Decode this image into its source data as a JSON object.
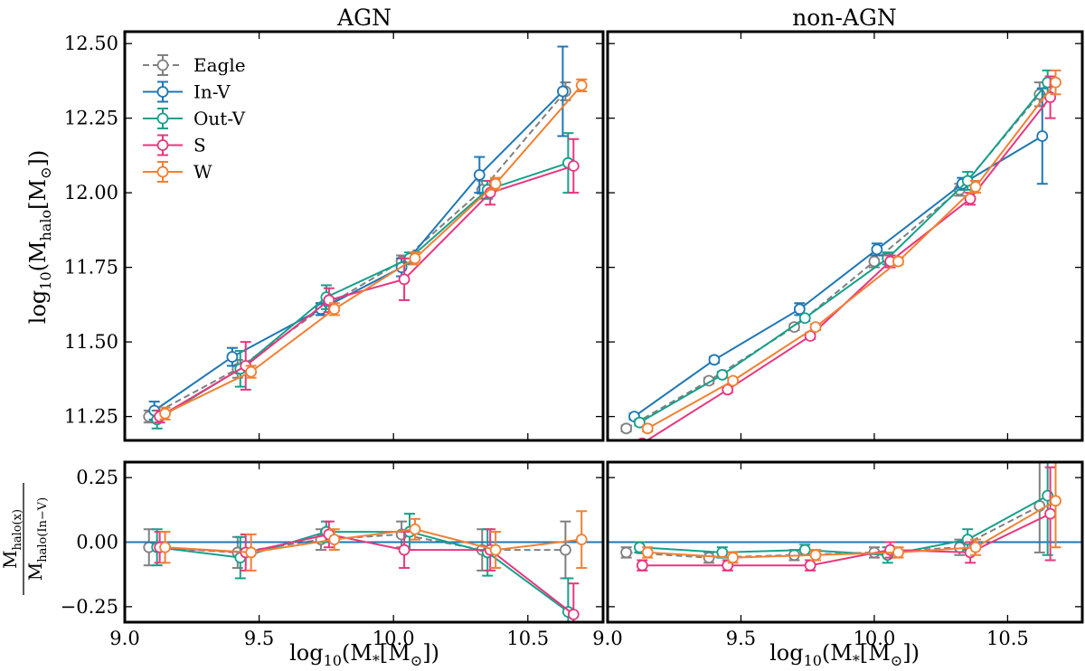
{
  "colors": {
    "Eagle": "#808080",
    "In-V": "#1f77b4",
    "Out-V": "#17a08a",
    "S": "#e8377f",
    "W": "#f28032"
  },
  "chart_data": [
    {
      "panel": "top-left",
      "type": "line",
      "title": "AGN",
      "xlabel": "",
      "ylabel_main": "log",
      "ylabel_sub": "10",
      "ylabel_rest": "(M",
      "ylabel_halo": "halo",
      "ylabel_tail": "[M",
      "ylabel_sun": "⊙",
      "ylabel_close": "])",
      "xlim": [
        9.0,
        10.78
      ],
      "ylim": [
        11.17,
        12.54
      ],
      "yticks": [
        11.25,
        11.5,
        11.75,
        12.0,
        12.25,
        12.5
      ],
      "ytick_labels": [
        "11.25",
        "11.50",
        "11.75",
        "12.00",
        "12.25",
        "12.50"
      ],
      "legend_position": "top-left",
      "series": [
        {
          "name": "Eagle",
          "dashed": true,
          "x": [
            9.09,
            9.42,
            9.73,
            10.03,
            10.33,
            10.64
          ],
          "y": [
            11.25,
            11.41,
            11.61,
            11.77,
            12.01,
            12.34
          ],
          "err": [
            0.02,
            0.03,
            0.02,
            0.02,
            0.03,
            0.03
          ]
        },
        {
          "name": "In-V",
          "dashed": false,
          "x": [
            9.11,
            9.4,
            9.73,
            10.03,
            10.32,
            10.63
          ],
          "y": [
            11.27,
            11.45,
            11.61,
            11.75,
            12.06,
            12.34
          ],
          "err": [
            0.03,
            0.03,
            0.02,
            0.03,
            0.06,
            0.15
          ]
        },
        {
          "name": "Out-V",
          "dashed": false,
          "x": [
            9.12,
            9.43,
            9.75,
            10.06,
            10.35,
            10.65
          ],
          "y": [
            11.24,
            11.41,
            11.65,
            11.78,
            12.01,
            12.1
          ],
          "err": [
            0.03,
            0.06,
            0.04,
            0.02,
            0.03,
            0.1
          ]
        },
        {
          "name": "S",
          "dashed": false,
          "x": [
            9.13,
            9.45,
            9.76,
            10.04,
            10.36,
            10.67
          ],
          "y": [
            11.25,
            11.42,
            11.64,
            11.71,
            12.0,
            12.09
          ],
          "err": [
            0.02,
            0.08,
            0.04,
            0.07,
            0.04,
            0.09
          ]
        },
        {
          "name": "W",
          "dashed": false,
          "x": [
            9.15,
            9.47,
            9.78,
            10.08,
            10.38,
            10.7
          ],
          "y": [
            11.26,
            11.4,
            11.61,
            11.78,
            12.03,
            12.36
          ],
          "err": [
            0.02,
            0.02,
            0.02,
            0.02,
            0.02,
            0.02
          ]
        }
      ]
    },
    {
      "panel": "top-right",
      "type": "line",
      "title": "non-AGN",
      "xlabel": "",
      "xlim": [
        9.0,
        10.78
      ],
      "ylim": [
        11.17,
        12.54
      ],
      "yticks": [
        11.25,
        11.5,
        11.75,
        12.0,
        12.25,
        12.5
      ],
      "series": [
        {
          "name": "Eagle",
          "dashed": true,
          "x": [
            9.07,
            9.38,
            9.7,
            10.0,
            10.32,
            10.62
          ],
          "y": [
            11.21,
            11.37,
            11.55,
            11.77,
            12.01,
            12.33
          ],
          "err": [
            0.01,
            0.01,
            0.01,
            0.02,
            0.02,
            0.04
          ]
        },
        {
          "name": "In-V",
          "dashed": false,
          "x": [
            9.1,
            9.4,
            9.72,
            10.01,
            10.33,
            10.63
          ],
          "y": [
            11.25,
            11.44,
            11.61,
            11.81,
            12.03,
            12.19
          ],
          "err": [
            0.01,
            0.01,
            0.02,
            0.02,
            0.02,
            0.16
          ]
        },
        {
          "name": "Out-V",
          "dashed": false,
          "x": [
            9.12,
            9.43,
            9.74,
            10.05,
            10.35,
            10.65
          ],
          "y": [
            11.23,
            11.39,
            11.58,
            11.78,
            12.04,
            12.37
          ],
          "err": [
            0.01,
            0.01,
            0.01,
            0.02,
            0.03,
            0.04
          ]
        },
        {
          "name": "S",
          "dashed": false,
          "x": [
            9.13,
            9.45,
            9.76,
            10.06,
            10.36,
            10.66
          ],
          "y": [
            11.16,
            11.34,
            11.52,
            11.77,
            11.98,
            12.32
          ],
          "err": [
            0.01,
            0.01,
            0.01,
            0.02,
            0.02,
            0.07
          ]
        },
        {
          "name": "W",
          "dashed": false,
          "x": [
            9.15,
            9.47,
            9.78,
            10.09,
            10.38,
            10.68
          ],
          "y": [
            11.21,
            11.37,
            11.55,
            11.77,
            12.02,
            12.37
          ],
          "err": [
            0.01,
            0.01,
            0.01,
            0.01,
            0.02,
            0.04
          ]
        }
      ]
    },
    {
      "panel": "bottom-left",
      "type": "line",
      "xlabel_main": "log",
      "xlabel_sub": "10",
      "xlabel_rest": "(M",
      "xlabel_star": "*",
      "xlabel_tail": "[M",
      "xlabel_sun": "⊙",
      "xlabel_close": "])",
      "ylabel_num": "M",
      "ylabel_num_sub": "halo(x)",
      "ylabel_den": "M",
      "ylabel_den_sub": "halo(In−V)",
      "xlim": [
        9.0,
        10.78
      ],
      "ylim": [
        -0.31,
        0.31
      ],
      "xticks": [
        9.0,
        9.5,
        10.0,
        10.5
      ],
      "xtick_labels": [
        "9.0",
        "9.5",
        "10.0",
        "10.5"
      ],
      "yticks": [
        -0.25,
        0.0,
        0.25
      ],
      "ytick_labels": [
        "−0.25",
        "0.00",
        "0.25"
      ],
      "series": [
        {
          "name": "In-V",
          "dashed": false,
          "x": [
            9.11,
            9.4,
            9.73,
            10.03,
            10.32,
            10.63
          ],
          "y": [
            0.0,
            0.0,
            0.0,
            0.0,
            0.0,
            0.0
          ],
          "err": [
            0,
            0,
            0,
            0,
            0,
            0
          ],
          "markers": false
        },
        {
          "name": "Eagle",
          "dashed": true,
          "x": [
            9.09,
            9.42,
            9.73,
            10.03,
            10.33,
            10.64
          ],
          "y": [
            -0.02,
            -0.04,
            0.01,
            0.03,
            -0.03,
            -0.03
          ],
          "err": [
            0.07,
            0.06,
            0.04,
            0.05,
            0.08,
            0.11
          ]
        },
        {
          "name": "Out-V",
          "dashed": false,
          "x": [
            9.12,
            9.43,
            9.75,
            10.06,
            10.35,
            10.65
          ],
          "y": [
            -0.02,
            -0.06,
            0.04,
            0.04,
            -0.04,
            -0.27
          ],
          "err": [
            0.07,
            0.08,
            0.04,
            0.07,
            0.09,
            0.13
          ]
        },
        {
          "name": "S",
          "dashed": false,
          "x": [
            9.13,
            9.45,
            9.76,
            10.04,
            10.36,
            10.67
          ],
          "y": [
            -0.02,
            -0.04,
            0.03,
            -0.03,
            -0.03,
            -0.28
          ],
          "err": [
            0.06,
            0.07,
            0.05,
            0.07,
            0.08,
            0.12
          ]
        },
        {
          "name": "W",
          "dashed": false,
          "x": [
            9.15,
            9.47,
            9.78,
            10.08,
            10.38,
            10.7
          ],
          "y": [
            -0.02,
            -0.04,
            0.01,
            0.05,
            -0.03,
            0.01
          ],
          "err": [
            0.06,
            0.07,
            0.04,
            0.04,
            0.07,
            0.11
          ]
        }
      ]
    },
    {
      "panel": "bottom-right",
      "type": "line",
      "xlabel_main": "log",
      "xlabel_sub": "10",
      "xlabel_rest": "(M",
      "xlabel_star": "*",
      "xlabel_tail": "[M",
      "xlabel_sun": "⊙",
      "xlabel_close": "])",
      "xlim": [
        9.0,
        10.78
      ],
      "ylim": [
        -0.31,
        0.31
      ],
      "xticks": [
        9.0,
        9.5,
        10.0,
        10.5
      ],
      "xtick_labels": [
        "9.0",
        "9.5",
        "10.0",
        "10.5"
      ],
      "yticks": [
        -0.25,
        0.0,
        0.25
      ],
      "series": [
        {
          "name": "In-V",
          "dashed": false,
          "x": [
            9.1,
            9.4,
            9.72,
            10.01,
            10.33,
            10.63
          ],
          "y": [
            0.0,
            0.0,
            0.0,
            0.0,
            0.0,
            0.0
          ],
          "err": [
            0,
            0,
            0,
            0,
            0,
            0
          ],
          "markers": false
        },
        {
          "name": "Eagle",
          "dashed": true,
          "x": [
            9.07,
            9.38,
            9.7,
            10.0,
            10.32,
            10.62
          ],
          "y": [
            -0.04,
            -0.06,
            -0.05,
            -0.04,
            -0.02,
            0.14
          ],
          "err": [
            0.02,
            0.02,
            0.02,
            0.02,
            0.03,
            0.18
          ]
        },
        {
          "name": "Out-V",
          "dashed": false,
          "x": [
            9.12,
            9.43,
            9.74,
            10.05,
            10.35,
            10.65
          ],
          "y": [
            -0.02,
            -0.04,
            -0.03,
            -0.05,
            0.01,
            0.18
          ],
          "err": [
            0.02,
            0.02,
            0.02,
            0.03,
            0.04,
            0.23
          ]
        },
        {
          "name": "S",
          "dashed": false,
          "x": [
            9.13,
            9.45,
            9.76,
            10.06,
            10.36,
            10.66
          ],
          "y": [
            -0.09,
            -0.09,
            -0.09,
            -0.03,
            -0.04,
            0.11
          ],
          "err": [
            0.02,
            0.02,
            0.02,
            0.03,
            0.04,
            0.18
          ]
        },
        {
          "name": "W",
          "dashed": false,
          "x": [
            9.15,
            9.47,
            9.78,
            10.09,
            10.38,
            10.68
          ],
          "y": [
            -0.04,
            -0.06,
            -0.05,
            -0.04,
            -0.02,
            0.16
          ],
          "err": [
            0.02,
            0.02,
            0.02,
            0.02,
            0.03,
            0.18
          ]
        }
      ]
    }
  ]
}
